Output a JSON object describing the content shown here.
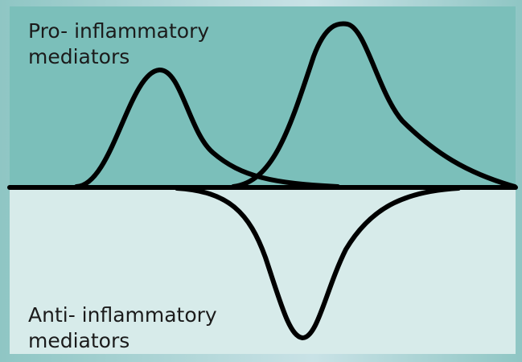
{
  "labels": {
    "pro": {
      "line1": "Pro- inflammatory",
      "line2": "mediators"
    },
    "anti": {
      "line1": "Anti- inflammatory",
      "line2": "mediators"
    }
  }
}
